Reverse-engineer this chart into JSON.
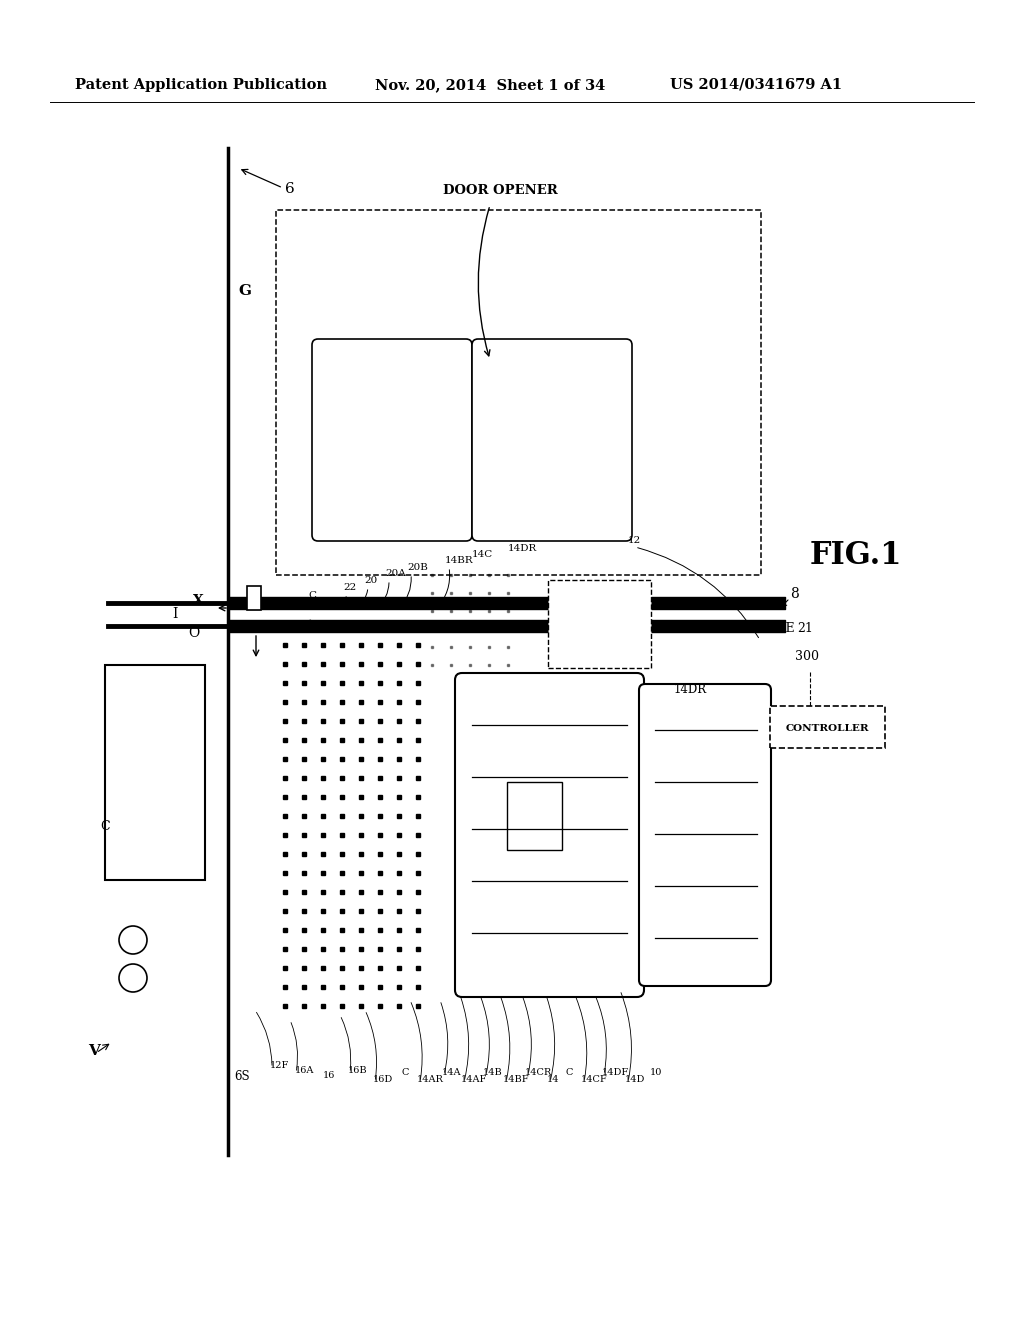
{
  "bg_color": "#ffffff",
  "header_left": "Patent Application Publication",
  "header_mid": "Nov. 20, 2014  Sheet 1 of 34",
  "header_right": "US 2014/0341679 A1",
  "fig_label": "FIG.1",
  "title_fontsize": 10.5,
  "label_fontsize": 8.5
}
